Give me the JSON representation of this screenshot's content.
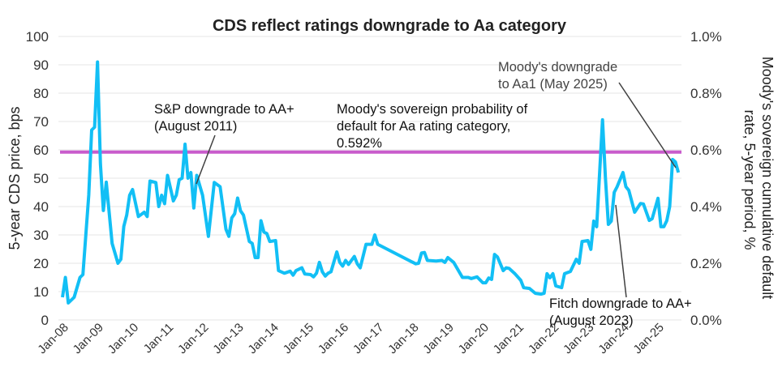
{
  "chart_data": {
    "type": "line",
    "title": "CDS reflect ratings downgrade to Aa category",
    "ylabel": "5-year CDS price, bps",
    "ylabel_right": "Moody's sovereign cumulative default rate, 5-year period, %",
    "ylim": [
      0,
      100
    ],
    "ylim_right": [
      0.0,
      1.0
    ],
    "yticks": [
      "0",
      "10",
      "20",
      "30",
      "40",
      "50",
      "60",
      "70",
      "80",
      "90",
      "100"
    ],
    "yticks_right": [
      "0.0%",
      "0.2%",
      "0.4%",
      "0.6%",
      "0.8%",
      "1.0%"
    ],
    "xticks": [
      "Jan-08",
      "Jan-09",
      "Jan-10",
      "Jan-11",
      "Jan-12",
      "Jan-13",
      "Jan-14",
      "Jan-15",
      "Jan-16",
      "Jan-17",
      "Jan-18",
      "Jan-19",
      "Jan-20",
      "Jan-21",
      "Jan-22",
      "Jan-23",
      "Jan-24",
      "Jan-25"
    ],
    "grid": true,
    "colors": {
      "series": "#12bff5",
      "threshold": "#c95ccc",
      "grid": "#e6e6e6",
      "annotation_line": "#404040"
    },
    "series": [
      {
        "x": [
          "2008-01",
          "2008-02",
          "2008-03",
          "2008-05",
          "2008-07",
          "2008-08",
          "2008-09",
          "2008-10",
          "2008-11",
          "2008-12",
          "2009-01",
          "2009-02",
          "2009-03",
          "2009-04",
          "2009-06",
          "2009-08",
          "2009-09",
          "2009-10",
          "2009-11",
          "2009-12",
          "2010-01",
          "2010-03",
          "2010-05",
          "2010-06",
          "2010-07",
          "2010-09",
          "2010-10",
          "2010-11",
          "2010-12",
          "2011-01",
          "2011-03",
          "2011-04",
          "2011-05",
          "2011-06",
          "2011-07",
          "2011-08",
          "2011-09",
          "2011-10",
          "2011-11",
          "2012-01",
          "2012-03",
          "2012-05",
          "2012-07",
          "2012-09",
          "2012-10",
          "2012-11",
          "2012-12",
          "2013-01",
          "2013-02",
          "2013-03",
          "2013-05",
          "2013-06",
          "2013-07",
          "2013-08",
          "2013-09",
          "2013-10",
          "2013-11",
          "2013-12",
          "2014-02",
          "2014-03",
          "2014-05",
          "2014-07",
          "2014-08",
          "2014-09",
          "2014-11",
          "2014-12",
          "2015-02",
          "2015-03",
          "2015-04",
          "2015-05",
          "2015-06",
          "2015-07",
          "2015-08",
          "2015-09",
          "2015-11",
          "2015-12",
          "2016-01",
          "2016-02",
          "2016-03",
          "2016-05",
          "2016-06",
          "2016-07",
          "2016-09",
          "2016-11",
          "2016-12",
          "2017-01",
          "2018-02",
          "2018-03",
          "2018-04",
          "2018-05",
          "2018-06",
          "2018-09",
          "2018-11",
          "2018-12",
          "2019-01",
          "2019-03",
          "2019-06",
          "2019-08",
          "2019-09",
          "2019-11",
          "2020-01",
          "2020-02",
          "2020-03",
          "2020-04",
          "2020-05",
          "2020-06",
          "2020-08",
          "2020-09",
          "2020-10",
          "2020-12",
          "2021-02",
          "2021-03",
          "2021-05",
          "2021-07",
          "2021-09",
          "2021-10",
          "2021-11",
          "2021-12",
          "2022-01",
          "2022-02",
          "2022-04",
          "2022-05",
          "2022-07",
          "2022-09",
          "2022-10",
          "2022-11",
          "2023-01",
          "2023-02",
          "2023-03",
          "2023-04",
          "2023-06",
          "2023-07",
          "2023-08",
          "2023-09",
          "2023-10",
          "2023-11",
          "2024-01",
          "2024-02",
          "2024-03",
          "2024-05",
          "2024-07",
          "2024-08",
          "2024-10",
          "2024-11",
          "2025-01",
          "2025-02",
          "2025-03",
          "2025-04",
          "2025-05",
          "2025-06",
          "2025-07",
          "2025-08"
        ],
        "y": [
          8,
          15,
          6,
          8,
          15,
          16,
          30,
          44,
          67,
          68,
          91,
          55,
          38.6,
          48.6,
          27,
          20,
          21.4,
          33,
          37,
          44,
          46,
          36.5,
          38,
          36.5,
          49,
          48.5,
          40,
          44,
          41,
          51,
          42,
          44,
          49.5,
          50,
          62,
          50,
          52,
          39.5,
          51,
          44,
          29.5,
          48.5,
          47,
          32,
          29.5,
          36,
          37.5,
          43,
          38.5,
          37,
          27.7,
          27,
          22,
          22,
          35,
          31,
          30.5,
          27.7,
          28,
          17.4,
          16.5,
          17.2,
          15.8,
          17.4,
          18.4,
          16.2,
          16,
          15.2,
          16.5,
          20.3,
          17,
          15.5,
          16.5,
          17,
          24,
          20.3,
          19,
          21,
          19.6,
          22.4,
          19.8,
          18.4,
          26.7,
          26.7,
          30,
          26.7,
          19.8,
          20,
          23.6,
          23.8,
          21,
          20.8,
          21,
          20.3,
          22,
          20.3,
          15,
          15,
          14.6,
          15.2,
          13.1,
          13.1,
          14.8,
          14.3,
          23.1,
          22.2,
          17.4,
          18.4,
          18.2,
          16.3,
          14,
          11.4,
          11.1,
          9.4,
          9.1,
          9.4,
          16.3,
          14.9,
          16.3,
          12,
          11.4,
          16.3,
          17.1,
          21.4,
          20,
          27.7,
          28,
          24.9,
          34.9,
          32.9,
          70.6,
          50,
          33.7,
          34.9,
          45,
          47,
          52,
          47,
          45.7,
          38,
          41.1,
          40.9,
          35.1,
          35.7,
          42.9,
          32.9,
          32.9,
          35,
          40,
          56.6,
          55.7,
          52
        ]
      }
    ],
    "threshold": {
      "value_pct": 0.592,
      "label": "Moody's sovereign probability of default for Aa rating category, 0.592%"
    },
    "annotations": [
      {
        "lines": [
          "S&P downgrade to AA+",
          "(August 2011)"
        ],
        "date": "2011-08"
      },
      {
        "lines": [
          "Moody's sovereign probability of",
          "default for Aa rating category,",
          "0.592%"
        ]
      },
      {
        "lines": [
          "Moody's downgrade",
          "to Aa1 (May 2025)"
        ],
        "date": "2025-05"
      },
      {
        "lines": [
          "Fitch downgrade to AA+",
          "(August 2023)"
        ],
        "date": "2023-08"
      }
    ]
  }
}
